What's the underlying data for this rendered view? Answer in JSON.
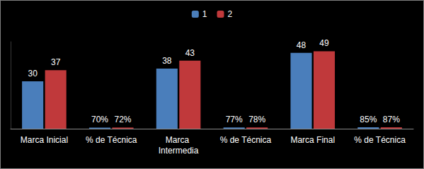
{
  "chart_data": {
    "type": "bar",
    "categories": [
      "Marca Inicial",
      "% de Técnica",
      "Marca Intermedia",
      "% de Técnica",
      "Marca Final",
      "% de Técnica"
    ],
    "series": [
      {
        "name": "1",
        "color": "#4a7ebb",
        "values": [
          30,
          0.7,
          38,
          0.77,
          48,
          0.85
        ],
        "value_labels": [
          "30",
          "70%",
          "38",
          "77%",
          "48",
          "85%"
        ]
      },
      {
        "name": "2",
        "color": "#c0393b",
        "values": [
          37,
          0.72,
          43,
          0.78,
          49,
          0.87
        ],
        "value_labels": [
          "37",
          "72%",
          "43",
          "78%",
          "49",
          "87%"
        ]
      }
    ],
    "ylim": [
      0,
      55
    ],
    "grid": false,
    "legend": "top",
    "data_labels": true,
    "tick_labels": "x"
  }
}
